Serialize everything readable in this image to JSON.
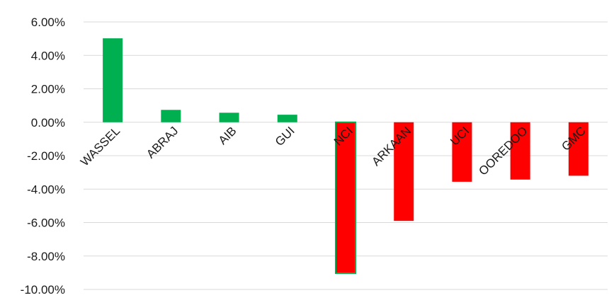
{
  "chart_data": {
    "type": "bar",
    "categories": [
      "WASSEL",
      "ABRAJ",
      "AIB",
      "GUI",
      "NCI",
      "ARKAAN",
      "UCI",
      "OOREDOO",
      "GMC"
    ],
    "values": [
      5.02,
      0.74,
      0.57,
      0.45,
      -9.03,
      -5.9,
      -3.56,
      -3.43,
      -3.2
    ],
    "ylim": [
      -10,
      6
    ],
    "yticks": [
      6,
      4,
      2,
      0,
      -2,
      -4,
      -6,
      -8,
      -10
    ],
    "ytick_labels": [
      "6.00%",
      "4.00%",
      "2.00%",
      "0.00%",
      "-2.00%",
      "-4.00%",
      "-6.00%",
      "-8.00%",
      "-10.00%"
    ],
    "grid": true,
    "legend": "none",
    "colors": {
      "positive": "#00b050",
      "negative": "#ff0000",
      "highlight_border": "#00b050",
      "grid": "#d9d9d9"
    },
    "highlighted_category": "NCI"
  }
}
